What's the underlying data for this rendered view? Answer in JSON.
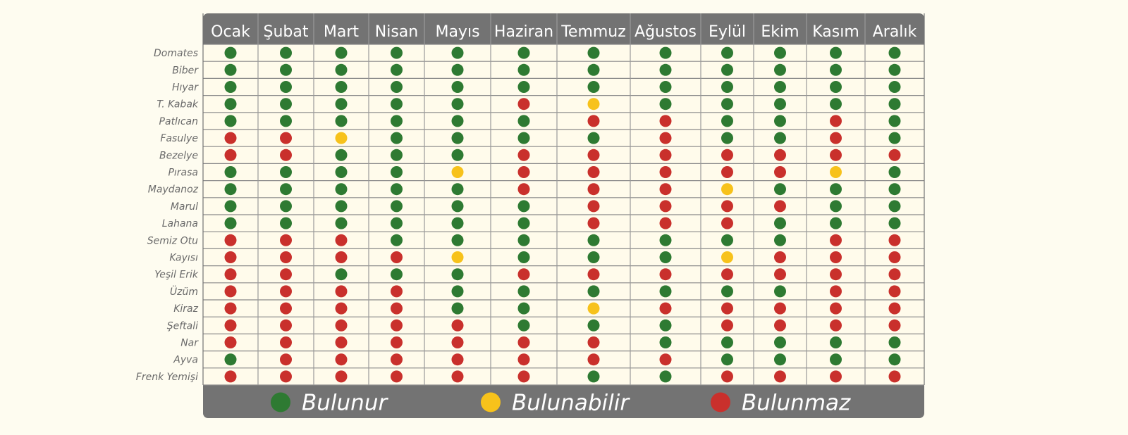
{
  "chart_data": {
    "type": "table",
    "months": [
      "Ocak",
      "Şubat",
      "Mart",
      "Nisan",
      "Mayıs",
      "Haziran",
      "Temmuz",
      "Ağustos",
      "Eylül",
      "Ekim",
      "Kasım",
      "Aralık"
    ],
    "rows": [
      {
        "label": "Domates",
        "values": [
          "G",
          "G",
          "G",
          "G",
          "G",
          "G",
          "G",
          "G",
          "G",
          "G",
          "G",
          "G"
        ]
      },
      {
        "label": "Biber",
        "values": [
          "G",
          "G",
          "G",
          "G",
          "G",
          "G",
          "G",
          "G",
          "G",
          "G",
          "G",
          "G"
        ]
      },
      {
        "label": "Hıyar",
        "values": [
          "G",
          "G",
          "G",
          "G",
          "G",
          "G",
          "G",
          "G",
          "G",
          "G",
          "G",
          "G"
        ]
      },
      {
        "label": "T. Kabak",
        "values": [
          "G",
          "G",
          "G",
          "G",
          "G",
          "R",
          "Y",
          "G",
          "G",
          "G",
          "G",
          "G"
        ]
      },
      {
        "label": "Patlıcan",
        "values": [
          "G",
          "G",
          "G",
          "G",
          "G",
          "G",
          "R",
          "R",
          "G",
          "G",
          "R",
          "G"
        ]
      },
      {
        "label": "Fasulye",
        "values": [
          "R",
          "R",
          "Y",
          "G",
          "G",
          "G",
          "G",
          "R",
          "G",
          "G",
          "R",
          "G"
        ]
      },
      {
        "label": "Bezelye",
        "values": [
          "R",
          "R",
          "G",
          "G",
          "G",
          "R",
          "R",
          "R",
          "R",
          "R",
          "R",
          "R"
        ]
      },
      {
        "label": "Pırasa",
        "values": [
          "G",
          "G",
          "G",
          "G",
          "Y",
          "R",
          "R",
          "R",
          "R",
          "R",
          "Y",
          "G"
        ]
      },
      {
        "label": "Maydanoz",
        "values": [
          "G",
          "G",
          "G",
          "G",
          "G",
          "R",
          "R",
          "R",
          "Y",
          "G",
          "G",
          "G"
        ]
      },
      {
        "label": "Marul",
        "values": [
          "G",
          "G",
          "G",
          "G",
          "G",
          "G",
          "R",
          "R",
          "R",
          "R",
          "G",
          "G"
        ]
      },
      {
        "label": "Lahana",
        "values": [
          "G",
          "G",
          "G",
          "G",
          "G",
          "G",
          "R",
          "R",
          "R",
          "G",
          "G",
          "G"
        ]
      },
      {
        "label": "Semiz Otu",
        "values": [
          "R",
          "R",
          "R",
          "G",
          "G",
          "G",
          "G",
          "G",
          "G",
          "G",
          "R",
          "R"
        ]
      },
      {
        "label": "Kayısı",
        "values": [
          "R",
          "R",
          "R",
          "R",
          "Y",
          "G",
          "G",
          "G",
          "Y",
          "R",
          "R",
          "R"
        ]
      },
      {
        "label": "Yeşil Erik",
        "values": [
          "R",
          "R",
          "G",
          "G",
          "G",
          "R",
          "R",
          "R",
          "R",
          "R",
          "R",
          "R"
        ]
      },
      {
        "label": "Üzüm",
        "values": [
          "R",
          "R",
          "R",
          "R",
          "G",
          "G",
          "G",
          "G",
          "G",
          "G",
          "R",
          "R"
        ]
      },
      {
        "label": "Kiraz",
        "values": [
          "R",
          "R",
          "R",
          "R",
          "G",
          "G",
          "Y",
          "R",
          "R",
          "R",
          "R",
          "R"
        ]
      },
      {
        "label": "Şeftali",
        "values": [
          "R",
          "R",
          "R",
          "R",
          "R",
          "G",
          "G",
          "G",
          "R",
          "R",
          "R",
          "R"
        ]
      },
      {
        "label": "Nar",
        "values": [
          "R",
          "R",
          "R",
          "R",
          "R",
          "R",
          "R",
          "G",
          "G",
          "G",
          "G",
          "G"
        ]
      },
      {
        "label": "Ayva",
        "values": [
          "G",
          "R",
          "R",
          "R",
          "R",
          "R",
          "R",
          "R",
          "G",
          "G",
          "G",
          "G"
        ]
      },
      {
        "label": "Frenk Yemişi",
        "values": [
          "R",
          "R",
          "R",
          "R",
          "R",
          "R",
          "G",
          "G",
          "R",
          "R",
          "R",
          "R"
        ]
      }
    ],
    "legend": [
      {
        "key": "G",
        "label": "Bulunur"
      },
      {
        "key": "Y",
        "label": "Bulunabilir"
      },
      {
        "key": "R",
        "label": "Bulunmaz"
      }
    ],
    "colors": {
      "G": "#2e7a32",
      "Y": "#f7c21b",
      "R": "#c9302c",
      "header_bg": "#737373",
      "header_text": "#ffffff",
      "label_text": "#6a6a6a",
      "cell_bg": "#fffbeb",
      "grid": "#8a8a8a",
      "page_bg": "#fefcf0"
    }
  }
}
